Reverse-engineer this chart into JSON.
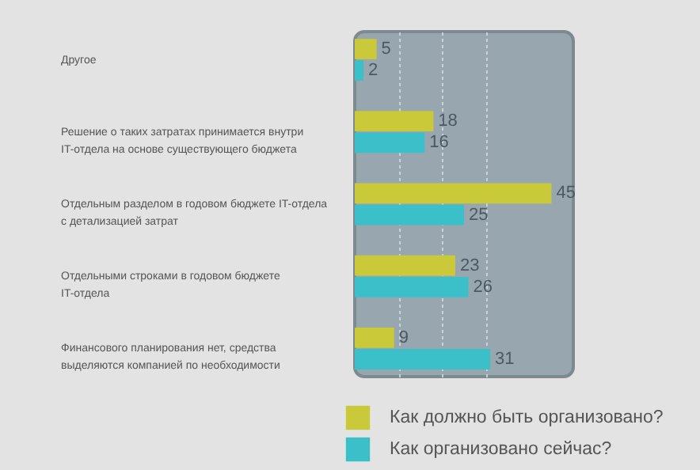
{
  "chart_data": {
    "type": "bar",
    "orientation": "horizontal",
    "categories": [
      "Другое",
      "Решение о таких затратах принимается внутри IT-отдела на основе существующего бюджета",
      "Отдельным разделом в годовом бюджете IT-отдела с детализацией затрат",
      "Отдельными строками в годовом бюджете IT-отдела",
      "Финансового планирования нет, средства выделяются компанией по необходимости"
    ],
    "series": [
      {
        "name": "Как должно быть организовано?",
        "color": "#c9c93a",
        "values": [
          5,
          18,
          45,
          23,
          9
        ]
      },
      {
        "name": "Как организовано сейчас?",
        "color": "#3bbfc9",
        "values": [
          2,
          16,
          25,
          26,
          31
        ]
      }
    ],
    "xlim": [
      0,
      50
    ],
    "xticks": [
      {
        "value": 10,
        "label": null
      },
      {
        "value": 20,
        "label": null
      },
      {
        "value": 30,
        "label": null
      }
    ],
    "grid": "x",
    "tick_labels": "y",
    "data_labels": true,
    "legend": "bottom right"
  }
}
